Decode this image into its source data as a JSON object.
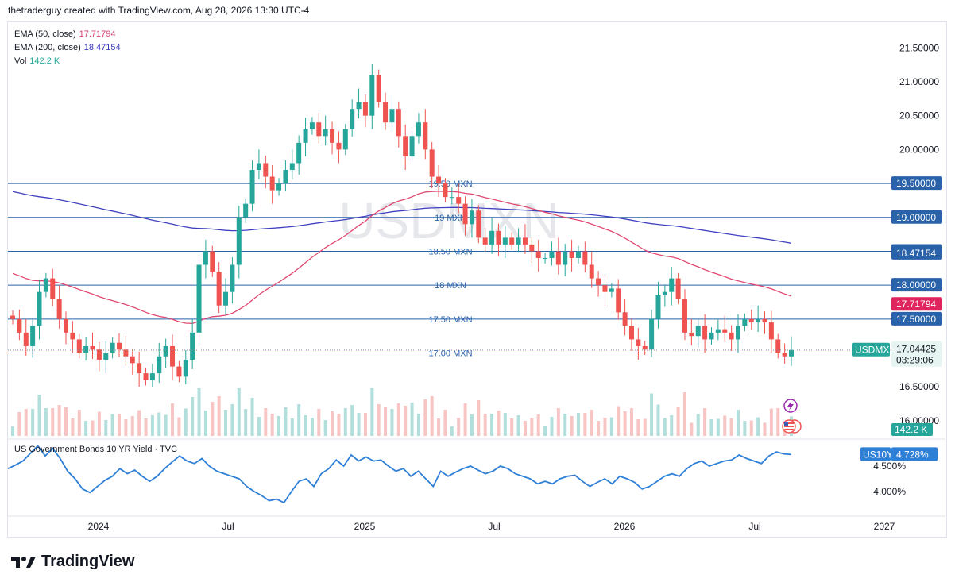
{
  "header": {
    "text": "thetraderguy created with TradingView.com, Aug 28, 2026 13:30 UTC-4"
  },
  "legend": {
    "ema50_label": "EMA (50, close)",
    "ema50_value": "17.71794",
    "ema200_label": "EMA (200, close)",
    "ema200_value": "18.47154",
    "vol_label": "Vol",
    "vol_value": "142.2 K"
  },
  "watermark": "USDMXN",
  "symbol_tag": "USDMXN",
  "countdown": "03:29:06",
  "subpane": {
    "title": "US Government Bonds 10 YR Yield · TVC",
    "tag": "US10Y",
    "last_value": "4.728%"
  },
  "footer": {
    "brand": "TradingView"
  },
  "colors": {
    "up": "#26a69a",
    "down": "#ef5350",
    "ema50": "#e04870",
    "ema200": "#4040c0",
    "hline": "#2962a8",
    "yield": "#2e7fd6"
  },
  "chart_data": [
    {
      "type": "candlestick",
      "symbol": "USDMXN",
      "ylim": [
        15.95,
        21.65
      ],
      "y_ticks": [
        "21.50000",
        "21.00000",
        "20.50000",
        "20.00000",
        "16.50000",
        "16.00000"
      ],
      "x_ticks": [
        "2024",
        "Jul",
        "2025",
        "Jul",
        "2026",
        "Jul",
        "2027"
      ],
      "last_price": "17.04425",
      "ema50_last": "17.71794",
      "ema200_last": "18.47154",
      "volume_last": "142.2 K",
      "horizontal_lines": [
        {
          "price": 19.5,
          "label": "19.50 MXN",
          "tag": "19.50000"
        },
        {
          "price": 19.0,
          "label": "19 MXN",
          "tag": "19.00000"
        },
        {
          "price": 18.5,
          "label": "18.50 MXN",
          "tag": "18.50000"
        },
        {
          "price": 18.0,
          "label": "18 MXN",
          "tag": "18.00000"
        },
        {
          "price": 17.5,
          "label": "17.50 MXN",
          "tag": "17.50000"
        },
        {
          "price": 17.0,
          "label": "17.00 MXN",
          "tag": "17.00000"
        }
      ],
      "weekly_close": [
        17.5,
        17.3,
        17.1,
        17.4,
        17.9,
        18.1,
        17.8,
        17.5,
        17.3,
        17.2,
        17.0,
        17.1,
        17.05,
        16.9,
        17.0,
        17.15,
        17.05,
        16.95,
        16.85,
        16.7,
        16.6,
        16.7,
        16.95,
        17.1,
        16.8,
        16.65,
        16.9,
        17.3,
        18.3,
        18.5,
        18.2,
        17.7,
        17.9,
        18.3,
        19.0,
        19.2,
        19.7,
        19.8,
        19.6,
        19.4,
        19.5,
        19.7,
        19.8,
        20.1,
        20.3,
        20.4,
        20.2,
        20.3,
        20.1,
        20.0,
        20.3,
        20.6,
        20.7,
        20.5,
        21.1,
        20.7,
        20.4,
        20.6,
        20.2,
        19.9,
        20.2,
        20.4,
        20.0,
        19.6,
        19.5,
        19.3,
        19.3,
        19.2,
        18.9,
        19.1,
        18.7,
        18.6,
        18.8,
        18.6,
        18.7,
        18.6,
        18.7,
        18.6,
        18.5,
        18.4,
        18.4,
        18.5,
        18.3,
        18.5,
        18.4,
        18.5,
        18.3,
        18.1,
        18.0,
        17.9,
        17.95,
        17.6,
        17.4,
        17.2,
        17.1,
        17.05,
        17.5,
        17.85,
        17.9,
        18.1,
        17.8,
        17.3,
        17.25,
        17.4,
        17.2,
        17.3,
        17.35,
        17.3,
        17.2,
        17.4,
        17.5,
        17.45,
        17.5,
        17.45,
        17.2,
        17.0,
        16.95,
        17.04425
      ],
      "yield_pane": {
        "ylim": [
          3.62,
          4.96
        ],
        "y_ticks": [
          "4.500%",
          "4.000%"
        ],
        "last_value": "4.728%",
        "weekly_values": [
          4.45,
          4.52,
          4.6,
          4.75,
          4.9,
          4.7,
          4.85,
          4.65,
          4.4,
          4.25,
          4.05,
          3.98,
          4.1,
          4.22,
          4.3,
          4.45,
          4.35,
          4.42,
          4.3,
          4.2,
          4.3,
          4.45,
          4.58,
          4.7,
          4.6,
          4.55,
          4.65,
          4.5,
          4.4,
          4.35,
          4.3,
          4.25,
          4.1,
          4.0,
          3.92,
          3.82,
          3.85,
          3.78,
          4.0,
          4.2,
          4.25,
          4.1,
          4.35,
          4.45,
          4.62,
          4.5,
          4.72,
          4.6,
          4.68,
          4.6,
          4.62,
          4.5,
          4.4,
          4.45,
          4.3,
          4.4,
          4.25,
          4.1,
          4.4,
          4.3,
          4.38,
          4.45,
          4.5,
          4.42,
          4.35,
          4.4,
          4.5,
          4.45,
          4.35,
          4.3,
          4.25,
          4.15,
          4.2,
          4.15,
          4.25,
          4.3,
          4.32,
          4.2,
          4.1,
          4.18,
          4.25,
          4.15,
          4.3,
          4.25,
          4.18,
          4.05,
          4.1,
          4.2,
          4.3,
          4.35,
          4.3,
          4.45,
          4.55,
          4.6,
          4.5,
          4.55,
          4.6,
          4.62,
          4.72,
          4.65,
          4.6,
          4.55,
          4.7,
          4.78,
          4.74,
          4.728
        ]
      }
    }
  ]
}
